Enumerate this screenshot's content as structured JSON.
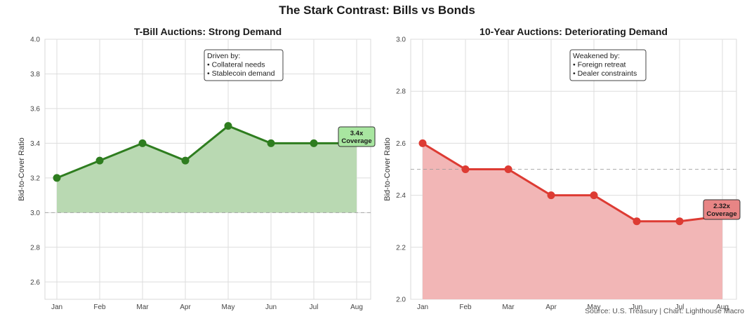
{
  "suptitle": "The Stark Contrast: Bills vs Bonds",
  "source_note": "Source: U.S. Treasury | Chart: Lighthouse Macro",
  "chart_data": [
    {
      "type": "area",
      "title": "T-Bill Auctions: Strong Demand",
      "xlabel": "",
      "ylabel": "Bid-to-Cover Ratio",
      "categories": [
        "Jan",
        "Feb",
        "Mar",
        "Apr",
        "May",
        "Jun",
        "Jul",
        "Aug"
      ],
      "values": [
        3.2,
        3.3,
        3.4,
        3.3,
        3.5,
        3.4,
        3.4,
        3.4
      ],
      "ylim": [
        2.5,
        4.0
      ],
      "yticks": [
        "2.6",
        "2.8",
        "3.0",
        "3.2",
        "3.4",
        "3.6",
        "3.8",
        "4.0"
      ],
      "reference_line": 3.0,
      "grid": true,
      "color": "#2e7d1f",
      "fill_color": "#b9d9b2",
      "annotation_box": {
        "lines": [
          "Driven by:",
          "• Collateral needs",
          "• Stablecoin demand"
        ]
      },
      "end_label": {
        "lines": [
          "3.4x",
          "Coverage"
        ],
        "color": "#a8e6a0"
      }
    },
    {
      "type": "area",
      "title": "10-Year Auctions: Deteriorating Demand",
      "xlabel": "",
      "ylabel": "Bid-to-Cover Ratio",
      "categories": [
        "Jan",
        "Feb",
        "Mar",
        "Apr",
        "May",
        "Jun",
        "Jul",
        "Aug"
      ],
      "values": [
        2.6,
        2.5,
        2.5,
        2.4,
        2.4,
        2.3,
        2.3,
        2.32
      ],
      "ylim": [
        2.0,
        3.0
      ],
      "yticks": [
        "2.0",
        "2.2",
        "2.4",
        "2.6",
        "2.8",
        "3.0"
      ],
      "reference_line": 2.5,
      "grid": true,
      "color": "#dd3b33",
      "fill_color": "#f2b6b6",
      "annotation_box": {
        "lines": [
          "Weakened by:",
          "• Foreign retreat",
          "• Dealer constraints"
        ]
      },
      "end_label": {
        "lines": [
          "2.32x",
          "Coverage"
        ],
        "color": "#e88585"
      }
    }
  ]
}
